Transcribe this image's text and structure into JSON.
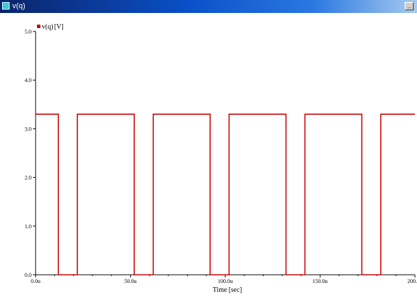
{
  "window": {
    "title": "v(q)",
    "minimize_glyph": "_",
    "restore_glyph": "❐"
  },
  "colors": {
    "trace": "#cc0000",
    "axis": "#000000",
    "background": "#ffffff"
  },
  "chart_data": {
    "type": "line",
    "title": "",
    "legend": {
      "label": "v(q)",
      "unit": "[V]",
      "placement": "top-left"
    },
    "xlabel": "Time [sec]",
    "ylabel": "",
    "xlim": [
      0,
      200
    ],
    "ylim": [
      0,
      5
    ],
    "x_unit": "us",
    "x_ticks": [
      0,
      50,
      100,
      150,
      200
    ],
    "x_tick_labels": [
      "0.0u",
      "50.0u",
      "100.0u",
      "150.0u",
      "200.0u"
    ],
    "y_ticks": [
      0,
      1,
      2,
      3,
      4,
      5
    ],
    "y_tick_labels": [
      "0.0",
      "1.0",
      "2.0",
      "3.0",
      "4.0",
      "5.0"
    ],
    "grid": false,
    "series": [
      {
        "name": "v(q)",
        "x": [
          0,
          12,
          12,
          22,
          22,
          52,
          52,
          62,
          62,
          92,
          92,
          102,
          102,
          132,
          132,
          142,
          142,
          172,
          172,
          182,
          182,
          200
        ],
        "y": [
          3.3,
          3.3,
          0,
          0,
          3.3,
          3.3,
          0,
          0,
          3.3,
          3.3,
          0,
          0,
          3.3,
          3.3,
          0,
          0,
          3.3,
          3.3,
          0,
          0,
          3.3,
          3.3
        ]
      }
    ]
  }
}
